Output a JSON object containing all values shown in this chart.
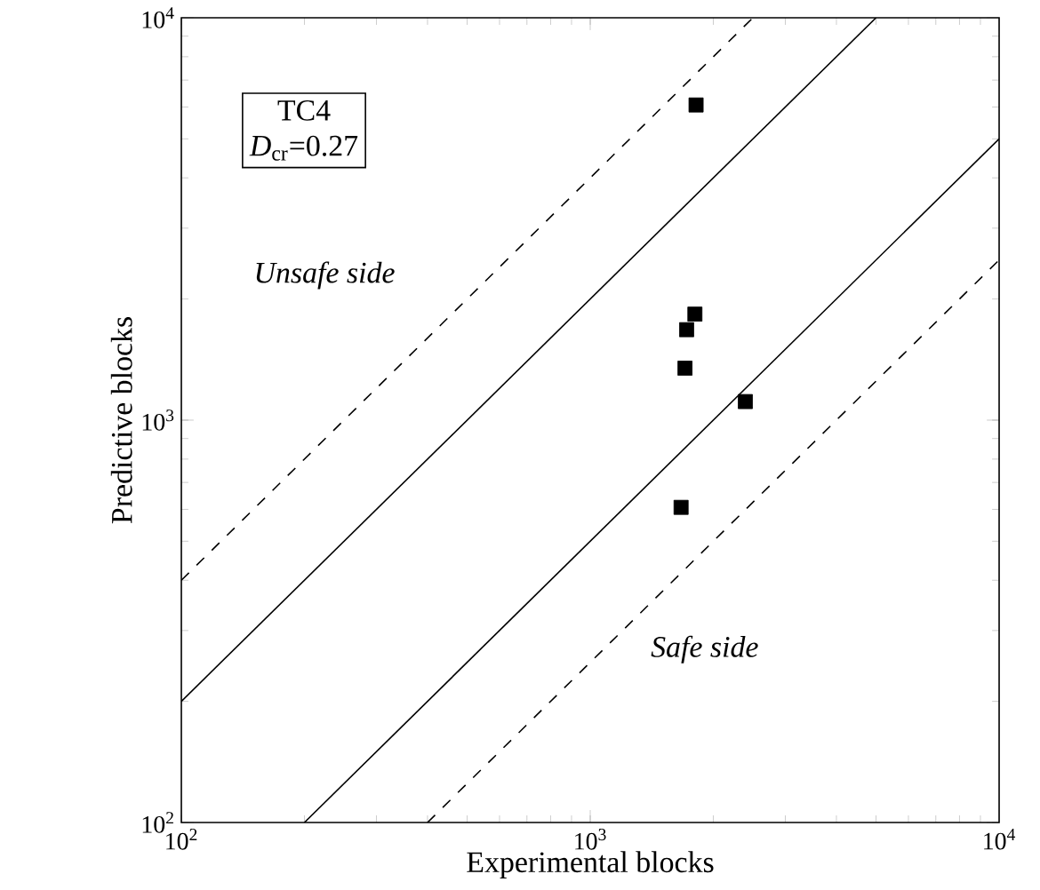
{
  "chart_data": {
    "type": "scatter",
    "xlabel": "Experimental blocks",
    "ylabel": "Predictive blocks",
    "log": "xy",
    "marker": "square",
    "xlim": [
      100,
      10000
    ],
    "ylim": [
      100,
      10000
    ],
    "xticks": [
      {
        "value": 100,
        "label": "10$^{2}$"
      },
      {
        "value": 1000,
        "label": "10$^{3}$"
      },
      {
        "value": 10000,
        "label": "10$^{4}$"
      }
    ],
    "yticks": [
      {
        "value": 100,
        "label": "10$^{2}$"
      },
      {
        "value": 1000,
        "label": "10$^{3}$"
      },
      {
        "value": 10000,
        "label": "10$^{4}$"
      }
    ],
    "series": [
      {
        "color": "#000000",
        "x": [
          1815,
          1803,
          1721,
          1705,
          2395,
          1668
        ],
        "values": [
          6070,
          1834,
          1678,
          1346,
          1112,
          607
        ]
      },
      {
        "type": "line",
        "color": "#000000",
        "line_style": "solid",
        "marker": "none",
        "x": [
          100,
          5000
        ],
        "values": [
          200,
          10000
        ]
      },
      {
        "type": "line",
        "color": "#000000",
        "line_style": "solid",
        "marker": "none",
        "x": [
          200,
          10000
        ],
        "values": [
          100,
          5000
        ]
      },
      {
        "type": "line",
        "color": "#000000",
        "line_style": "dashed",
        "marker": "none",
        "x": [
          100,
          2500
        ],
        "values": [
          400,
          10000
        ]
      },
      {
        "type": "line",
        "color": "#000000",
        "line_style": "dashed",
        "marker": "none",
        "x": [
          400,
          10000
        ],
        "values": [
          100,
          2500
        ]
      }
    ],
    "annotations": [
      "TC4",
      "*D*$_{cr}$=0.27",
      "*Unsafe side*",
      "*Safe side*"
    ]
  }
}
